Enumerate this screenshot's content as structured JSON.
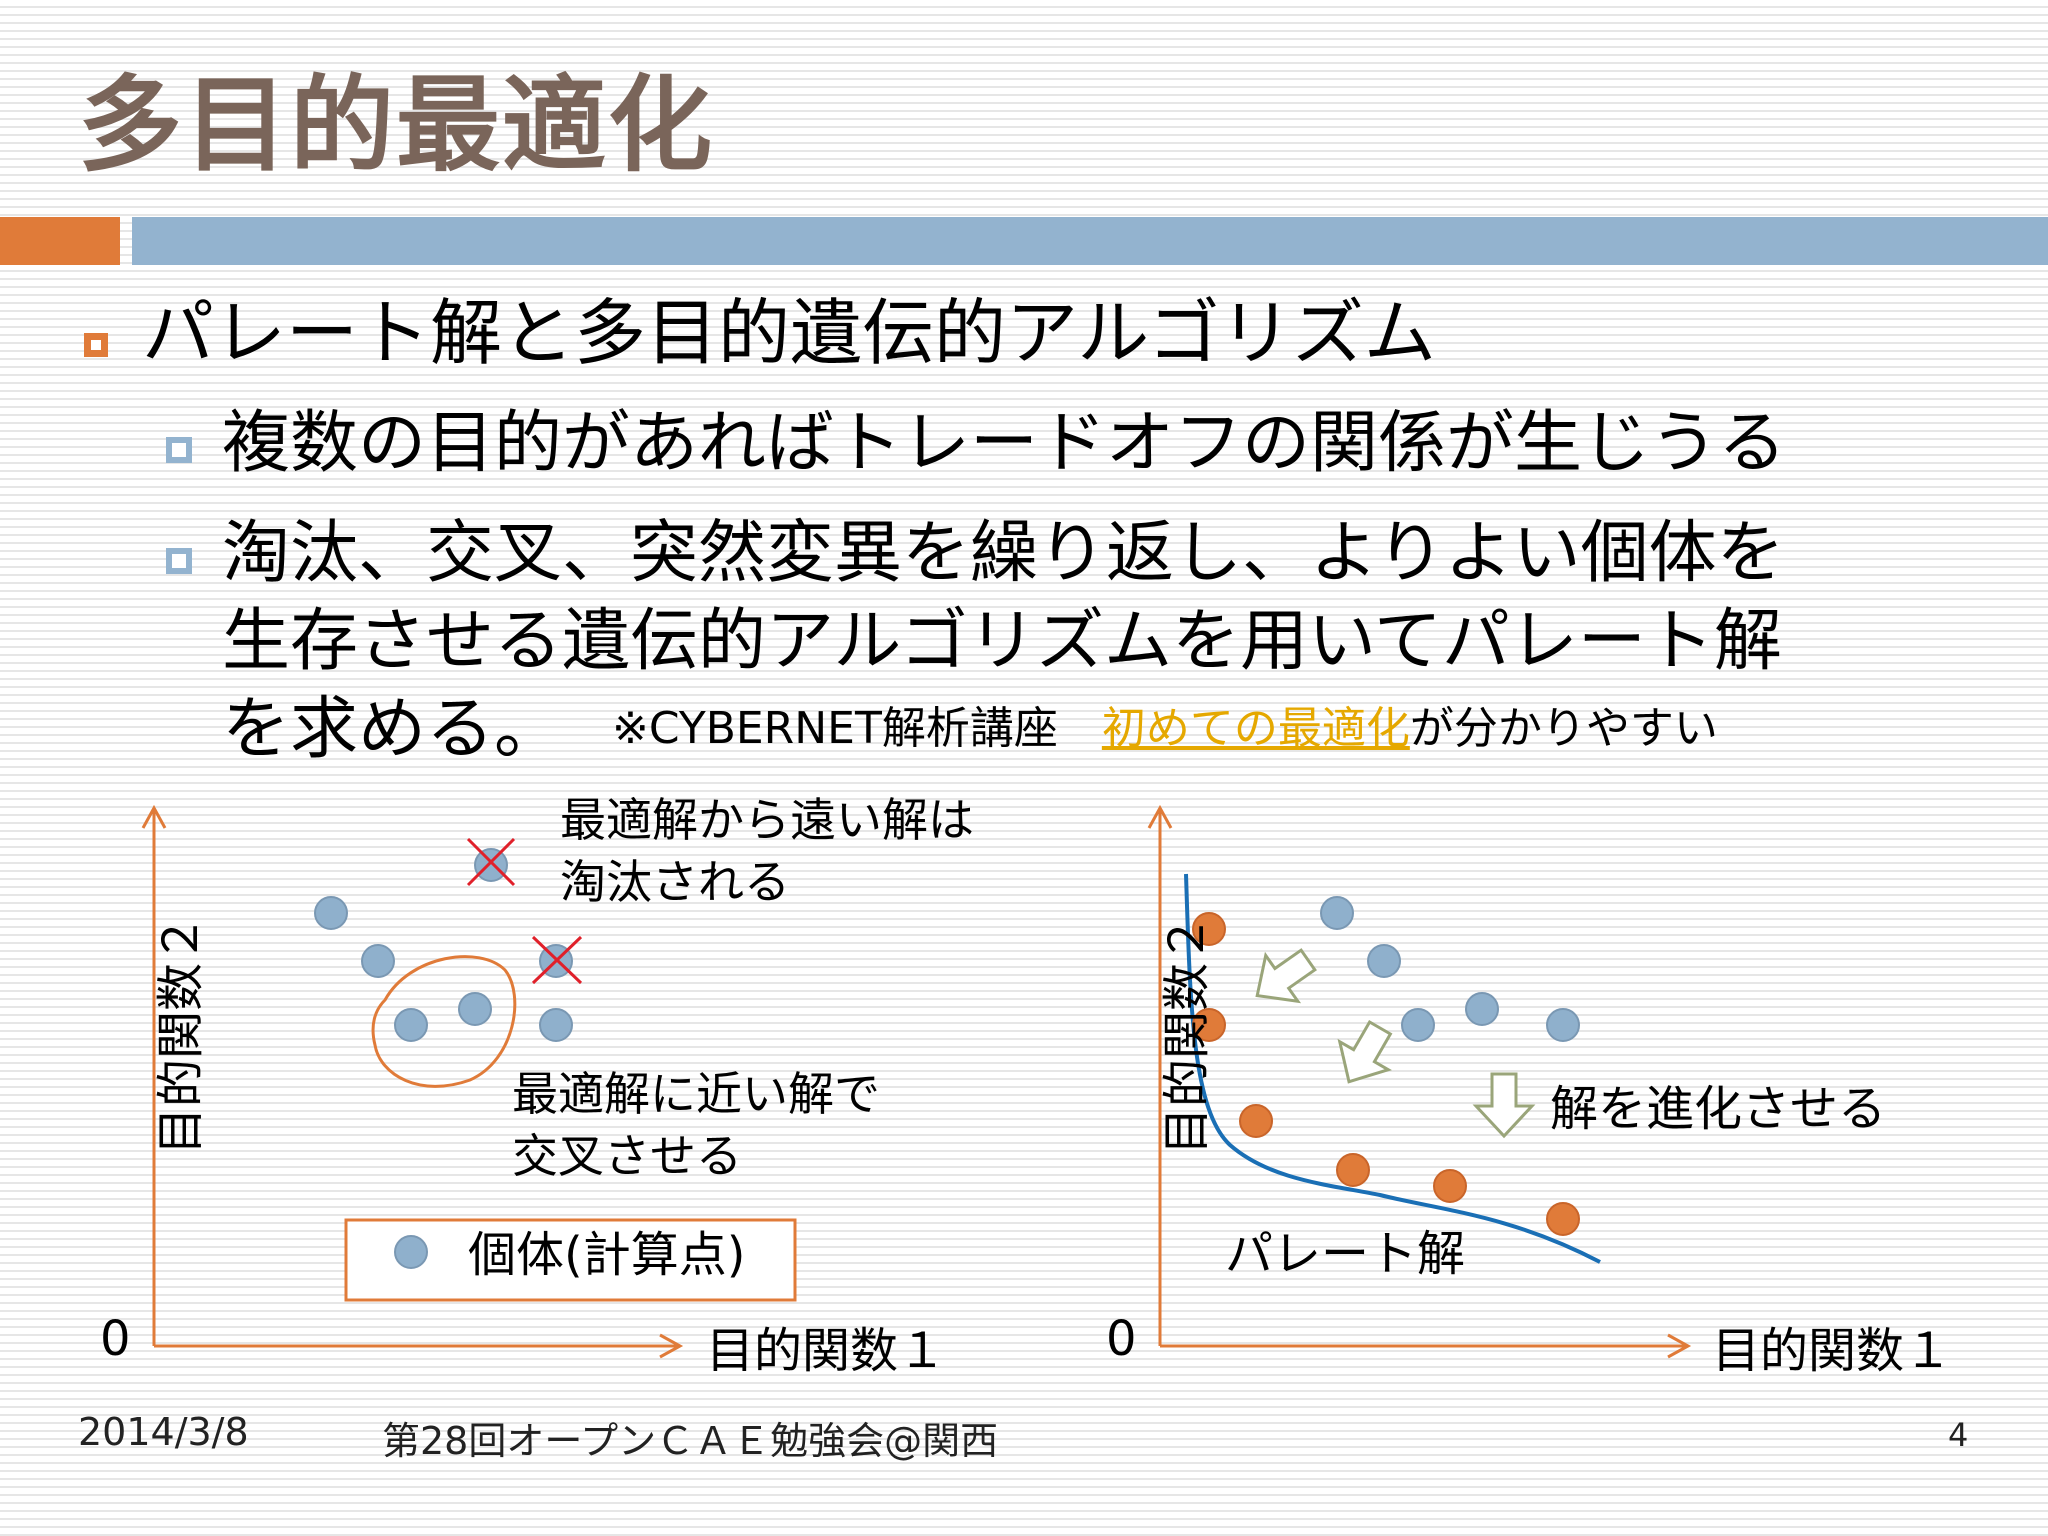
{
  "slide": {
    "title": "多目的最適化",
    "bullet1": "パレート解と多目的遺伝的アルゴリズム",
    "sub1": "複数の目的があればトレードオフの関係が生じうる",
    "sub2_line1": "淘汰、交叉、突然変異を繰り返し、よりよい個体を",
    "sub2_line2": "生存させる遺伝的アルゴリズムを用いてパレート解",
    "sub2_line3": "を求める。",
    "note_prefix": "※CYBERNET解析講座　",
    "note_link": "初めての最適化",
    "note_suffix": "が分かりやすい"
  },
  "left_diagram": {
    "ylabel": "目的関数２",
    "xlabel": "目的関数１",
    "origin": "0",
    "ann_eliminate_1": "最適解から遠い解は",
    "ann_eliminate_2": "淘汰される",
    "ann_cross_1": "最適解に近い解で",
    "ann_cross_2": "交叉させる",
    "legend_label": "個体(計算点)"
  },
  "right_diagram": {
    "ylabel": "目的関数２",
    "xlabel": "目的関数１",
    "origin": "0",
    "ann_evolve": "解を進化させる",
    "pareto_label": "パレート解"
  },
  "footer": {
    "date": "2014/3/8",
    "event": "第28回オープンＣＡＥ勉強会@関西",
    "page": "4"
  },
  "colors": {
    "title": "#7a655a",
    "accent_orange": "#e07b39",
    "accent_blue": "#93b3cf",
    "pareto_curve": "#1a6fb5",
    "cross_mark": "#e0202a",
    "arrow_outline": "#9aa57a",
    "link": "#e5a800"
  }
}
